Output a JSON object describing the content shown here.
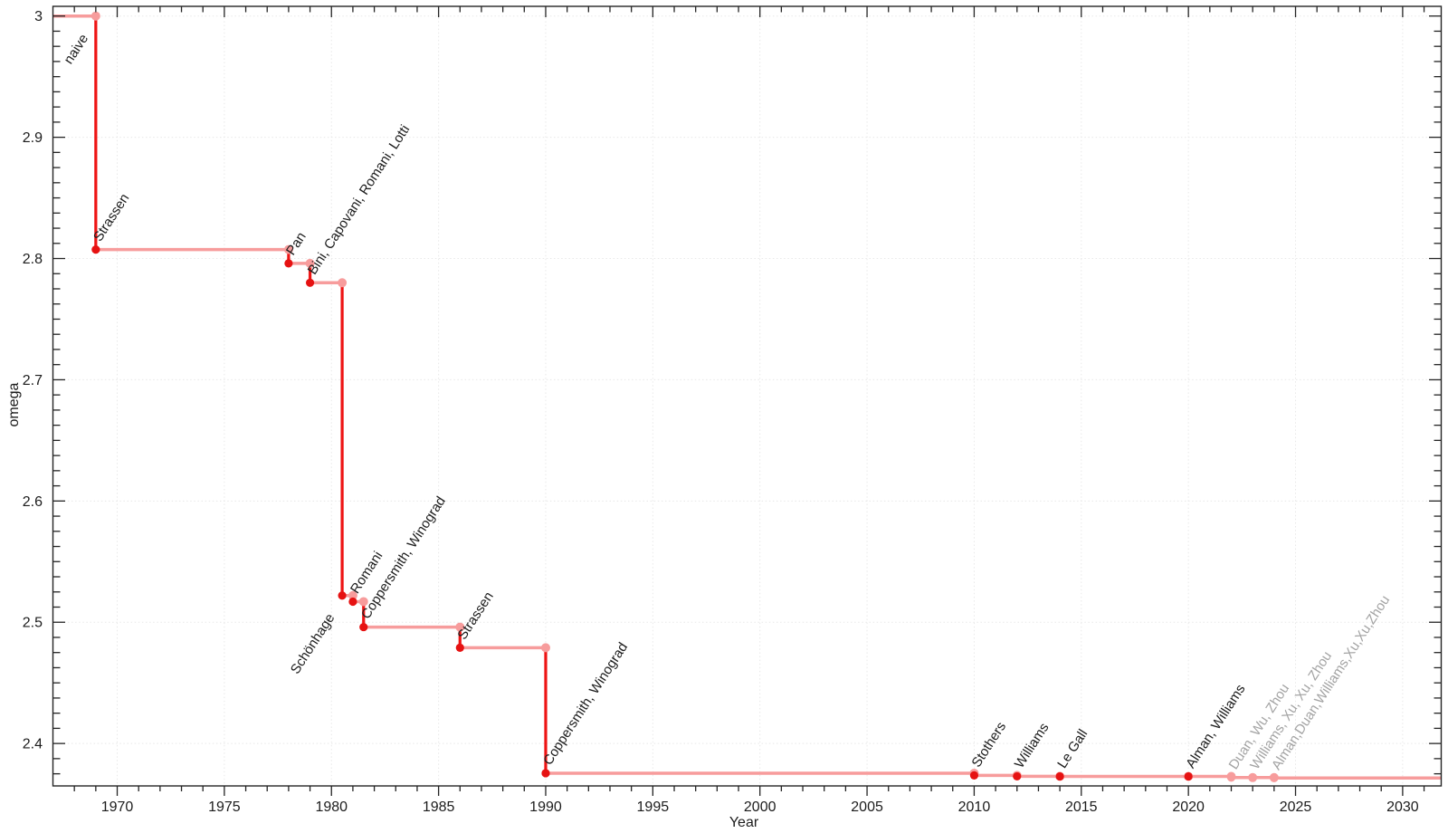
{
  "chart_data": {
    "type": "line",
    "subtype": "step-post",
    "title": "",
    "xlabel": "Year",
    "ylabel": "omega",
    "legend": "none",
    "grid": "major-dotted",
    "xlim": [
      1967.0,
      2031.8
    ],
    "ylim": [
      2.365,
      3.008
    ],
    "x_major_ticks": [
      1970,
      1975,
      1980,
      1985,
      1990,
      1995,
      2000,
      2005,
      2010,
      2015,
      2020,
      2025,
      2030
    ],
    "x_minor_tick_step": 1,
    "y_major_ticks": [
      3.0,
      2.9,
      2.8,
      2.7,
      2.6,
      2.5,
      2.4
    ],
    "y_major_tick_labels": [
      "3",
      "2.9",
      "2.8",
      "2.7",
      "2.6",
      "2.5",
      "2.4"
    ],
    "y_minor_tick_step": 0.0125,
    "baseline": {
      "label": "naive",
      "omega": 3.0,
      "label_anchor_year": 1969,
      "label_anchor": "end"
    },
    "points": [
      {
        "label": "Strassen",
        "year": 1969,
        "plot_x": 1969.0,
        "omega": 2.8074,
        "emphasis": "strong",
        "label_anchor": "start"
      },
      {
        "label": "Pan",
        "year": 1978,
        "plot_x": 1978.0,
        "omega": 2.796,
        "emphasis": "strong",
        "label_anchor": "start"
      },
      {
        "label": "Bini, Capovani, Romani, Lotti",
        "year": 1979,
        "plot_x": 1979.0,
        "omega": 2.78,
        "emphasis": "strong",
        "label_anchor": "start"
      },
      {
        "label": "Schönhage",
        "year": 1981,
        "plot_x": 1980.5,
        "omega": 2.522,
        "emphasis": "strong",
        "label_anchor": "end"
      },
      {
        "label": "Romani",
        "year": 1981,
        "plot_x": 1981.0,
        "omega": 2.517,
        "emphasis": "strong",
        "label_anchor": "start"
      },
      {
        "label": "Coppersmith, Winograd",
        "year": 1981,
        "plot_x": 1981.5,
        "omega": 2.496,
        "emphasis": "strong",
        "label_anchor": "start"
      },
      {
        "label": "Strassen",
        "year": 1986,
        "plot_x": 1986.0,
        "omega": 2.479,
        "emphasis": "strong",
        "label_anchor": "start"
      },
      {
        "label": "Coppersmith, Winograd",
        "year": 1990,
        "plot_x": 1990.0,
        "omega": 2.3755,
        "emphasis": "strong",
        "label_anchor": "start"
      },
      {
        "label": "Stothers",
        "year": 2010,
        "plot_x": 2010.0,
        "omega": 2.3737,
        "emphasis": "strong",
        "label_anchor": "start"
      },
      {
        "label": "Williams",
        "year": 2012,
        "plot_x": 2012.0,
        "omega": 2.3729,
        "emphasis": "strong",
        "label_anchor": "start"
      },
      {
        "label": "Le Gall",
        "year": 2014,
        "plot_x": 2014.0,
        "omega": 2.3728639,
        "emphasis": "strong",
        "label_anchor": "start"
      },
      {
        "label": "Alman, Williams",
        "year": 2020,
        "plot_x": 2020.0,
        "omega": 2.3728596,
        "emphasis": "strong",
        "label_anchor": "start"
      },
      {
        "label": "Duan, Wu, Zhou",
        "year": 2022,
        "plot_x": 2022.0,
        "omega": 2.37188,
        "emphasis": "muted",
        "label_anchor": "start"
      },
      {
        "label": "Williams, Xu, Xu, Zhou",
        "year": 2023,
        "plot_x": 2023.0,
        "omega": 2.371866,
        "emphasis": "muted",
        "label_anchor": "start"
      },
      {
        "label": "Alman,Duan,Williams,Xu,Xu,Zhou",
        "year": 2024,
        "plot_x": 2024.0,
        "omega": 2.371552,
        "emphasis": "muted",
        "label_anchor": "start"
      }
    ],
    "colors": {
      "step_line": "#f79c9c",
      "step_marker": "#f79c9c",
      "drop_line": "#ee1414",
      "strong_marker": "#e61212",
      "strong_label": "#1c1c1c",
      "muted_label": "#a3a3a3",
      "grid": "#e8e8e8",
      "frame": "#242424",
      "tick_label": "#1c1c1c"
    },
    "annotation_rotation_deg": 57
  }
}
